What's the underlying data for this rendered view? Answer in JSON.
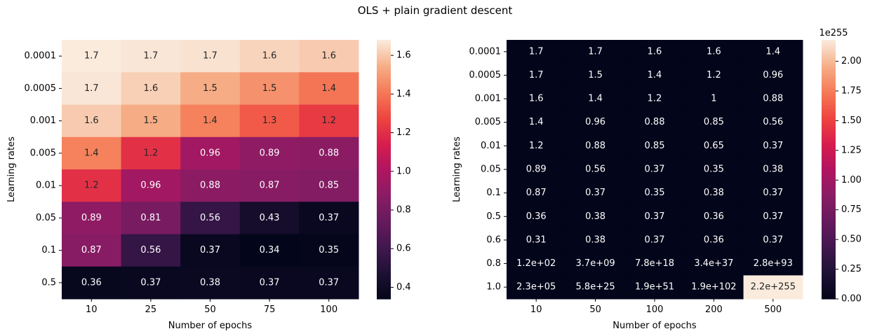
{
  "suptitle": "OLS + plain gradient descent",
  "chart_data": [
    {
      "type": "heatmap",
      "xlabel": "Number of epochs",
      "ylabel": "Learning rates",
      "x_categories": [
        "10",
        "25",
        "50",
        "75",
        "100"
      ],
      "y_categories": [
        "0.0001",
        "0.0005",
        "0.001",
        "0.005",
        "0.01",
        "0.05",
        "0.1",
        "0.5"
      ],
      "values": [
        [
          1.68,
          1.67,
          1.66,
          1.63,
          1.61
        ],
        [
          1.67,
          1.62,
          1.54,
          1.47,
          1.4
        ],
        [
          1.61,
          1.54,
          1.43,
          1.33,
          1.24
        ],
        [
          1.43,
          1.21,
          0.96,
          0.89,
          0.88
        ],
        [
          1.21,
          0.96,
          0.88,
          0.87,
          0.85
        ],
        [
          0.89,
          0.81,
          0.56,
          0.43,
          0.37
        ],
        [
          0.87,
          0.56,
          0.37,
          0.34,
          0.35
        ],
        [
          0.36,
          0.37,
          0.38,
          0.37,
          0.37
        ]
      ],
      "annotations": [
        [
          "1.7",
          "1.7",
          "1.7",
          "1.6",
          "1.6"
        ],
        [
          "1.7",
          "1.6",
          "1.5",
          "1.5",
          "1.4"
        ],
        [
          "1.6",
          "1.5",
          "1.4",
          "1.3",
          "1.2"
        ],
        [
          "1.4",
          "1.2",
          "0.96",
          "0.89",
          "0.88"
        ],
        [
          "1.2",
          "0.96",
          "0.88",
          "0.87",
          "0.85"
        ],
        [
          "0.89",
          "0.81",
          "0.56",
          "0.43",
          "0.37"
        ],
        [
          "0.87",
          "0.56",
          "0.37",
          "0.34",
          "0.35"
        ],
        [
          "0.36",
          "0.37",
          "0.38",
          "0.37",
          "0.37"
        ]
      ],
      "vmin": 0.34,
      "vmax": 1.68,
      "colorbar_ticks": [
        "0.4",
        "0.6",
        "0.8",
        "1.0",
        "1.2",
        "1.4",
        "1.6"
      ],
      "colorbar_tick_values": [
        0.4,
        0.6,
        0.8,
        1.0,
        1.2,
        1.4,
        1.6
      ],
      "colormap": "rocket",
      "colorbar_offset_text": ""
    },
    {
      "type": "heatmap",
      "xlabel": "Number of epochs",
      "ylabel": "Learning rates",
      "x_categories": [
        "10",
        "50",
        "100",
        "200",
        "500"
      ],
      "y_categories": [
        "0.0001",
        "0.0005",
        "0.001",
        "0.005",
        "0.01",
        "0.05",
        "0.1",
        "0.5",
        "0.6",
        "0.8",
        "1.0"
      ],
      "values": [
        [
          0,
          0,
          0,
          0,
          0
        ],
        [
          0,
          0,
          0,
          0,
          0
        ],
        [
          0,
          0,
          0,
          0,
          0
        ],
        [
          0,
          0,
          0,
          0,
          0
        ],
        [
          0,
          0,
          0,
          0,
          0
        ],
        [
          0,
          0,
          0,
          0,
          0
        ],
        [
          0,
          0,
          0,
          0,
          0
        ],
        [
          0,
          0,
          0,
          0,
          0
        ],
        [
          0,
          0,
          0,
          0,
          0
        ],
        [
          0,
          0,
          0,
          0,
          0
        ],
        [
          0,
          0,
          0,
          0,
          2.2
        ]
      ],
      "values_unit": "1e255",
      "annotations": [
        [
          "1.7",
          "1.7",
          "1.6",
          "1.6",
          "1.4"
        ],
        [
          "1.7",
          "1.5",
          "1.4",
          "1.2",
          "0.96"
        ],
        [
          "1.6",
          "1.4",
          "1.2",
          "1",
          "0.88"
        ],
        [
          "1.4",
          "0.96",
          "0.88",
          "0.85",
          "0.56"
        ],
        [
          "1.2",
          "0.88",
          "0.85",
          "0.65",
          "0.37"
        ],
        [
          "0.89",
          "0.56",
          "0.37",
          "0.35",
          "0.38"
        ],
        [
          "0.87",
          "0.37",
          "0.35",
          "0.38",
          "0.37"
        ],
        [
          "0.36",
          "0.38",
          "0.37",
          "0.36",
          "0.37"
        ],
        [
          "0.31",
          "0.38",
          "0.37",
          "0.36",
          "0.37"
        ],
        [
          "1.2e+02",
          "3.7e+09",
          "7.8e+18",
          "3.4e+37",
          "2.8e+93"
        ],
        [
          "2.3e+05",
          "5.8e+25",
          "1.9e+51",
          "1.9e+102",
          "2.2e+255"
        ]
      ],
      "vmin": 0,
      "vmax": 2.18,
      "colorbar_ticks": [
        "0.00",
        "0.25",
        "0.50",
        "0.75",
        "1.00",
        "1.25",
        "1.50",
        "1.75",
        "2.00"
      ],
      "colorbar_tick_values": [
        0,
        0.25,
        0.5,
        0.75,
        1.0,
        1.25,
        1.5,
        1.75,
        2.0
      ],
      "colormap": "rocket",
      "colorbar_offset_text": "1e255"
    }
  ]
}
